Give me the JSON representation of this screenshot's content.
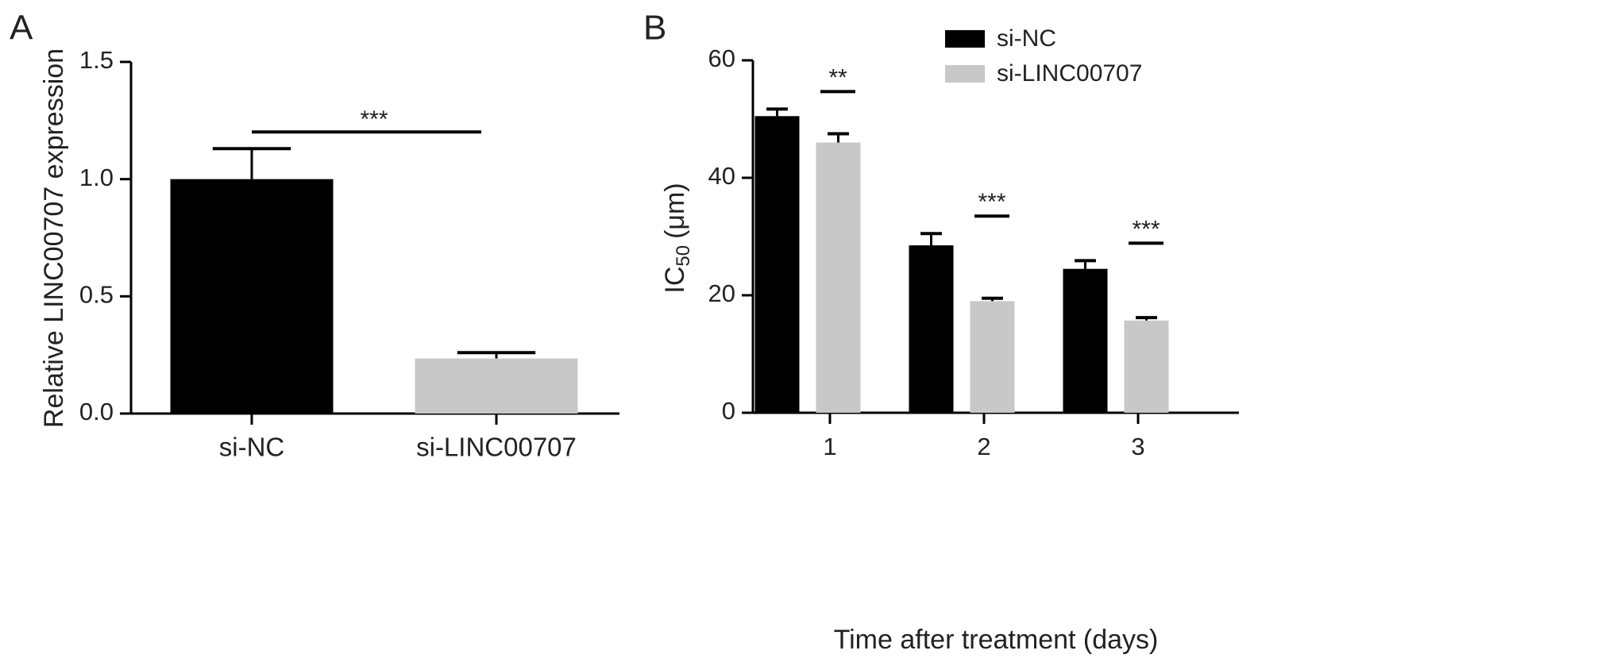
{
  "chart_data": [
    {
      "type": "bar",
      "panel": "A",
      "ylabel": "Relative LINC00707 expression",
      "categories": [
        "si-NC",
        "si-LINC00707"
      ],
      "values": [
        1.0,
        0.235
      ],
      "errors": [
        0.13,
        0.025
      ],
      "colors": [
        "#000000",
        "#c8c8c8"
      ],
      "ylim": [
        0,
        1.5
      ],
      "yticks": [
        {
          "value": 0,
          "label": "0.0"
        },
        {
          "value": 0.5,
          "label": "0.5"
        },
        {
          "value": 1,
          "label": "1.0"
        },
        {
          "value": 1.5,
          "label": "1.5"
        }
      ],
      "annotations": [
        {
          "text": "***",
          "between": [
            0,
            1
          ]
        }
      ]
    },
    {
      "type": "grouped_bar",
      "panel": "B",
      "ylabel": {
        "main": "IC",
        "sub": "50",
        "unit": "(μm)"
      },
      "xlabel": "Time after treatment (days)",
      "categories": [
        "1",
        "2",
        "3"
      ],
      "series": [
        {
          "name": "si-NC",
          "color": "#000000",
          "values": [
            50.5,
            28.5,
            24.5
          ],
          "errors": [
            1.2,
            2.0,
            1.4
          ]
        },
        {
          "name": "si-LINC00707",
          "color": "#c8c8c8",
          "values": [
            46,
            19,
            15.7
          ],
          "errors": [
            1.5,
            0.5,
            0.5
          ]
        }
      ],
      "ylim": [
        0,
        60
      ],
      "yticks": [
        0,
        20,
        40,
        60
      ],
      "annotations": [
        {
          "text": "**",
          "category": 0
        },
        {
          "text": "***",
          "category": 1
        },
        {
          "text": "***",
          "category": 2
        }
      ],
      "legend": "top-right"
    }
  ]
}
